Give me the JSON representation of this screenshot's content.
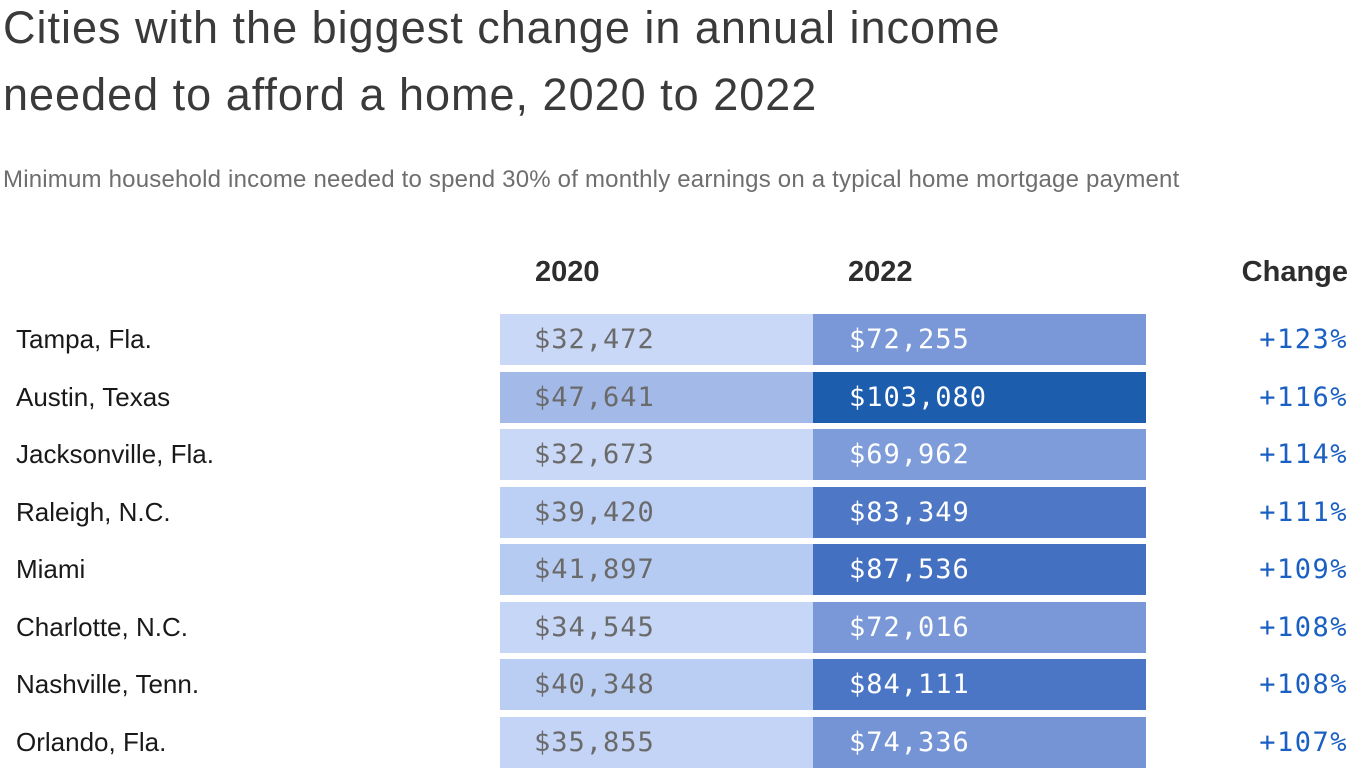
{
  "page": {
    "title_line1": "Cities with the biggest change in annual income",
    "title_line2": "needed to afford a home, 2020 to 2022",
    "subtitle": "Minimum household income needed to spend 30% of monthly earnings on a typical home mortgage payment"
  },
  "table": {
    "headers": {
      "y2020": "2020",
      "y2022": "2022",
      "change": "Change"
    },
    "rows": [
      {
        "city": "Tampa, Fla.",
        "v2020": "$32,472",
        "v2022": "$72,255",
        "change": "+123%",
        "bg2020": "#c9d8f7",
        "bg2022": "#7a98d8"
      },
      {
        "city": "Austin, Texas",
        "v2020": "$47,641",
        "v2022": "$103,080",
        "change": "+116%",
        "bg2020": "#a3bae9",
        "bg2022": "#1c5dad"
      },
      {
        "city": "Jacksonville, Fla.",
        "v2020": "$32,673",
        "v2022": "$69,962",
        "change": "+114%",
        "bg2020": "#c9d8f7",
        "bg2022": "#7e9cda"
      },
      {
        "city": "Raleigh, N.C.",
        "v2020": "$39,420",
        "v2022": "$83,349",
        "change": "+111%",
        "bg2020": "#bccff4",
        "bg2022": "#4e78c6"
      },
      {
        "city": "Miami",
        "v2020": "$41,897",
        "v2022": "$87,536",
        "change": "+109%",
        "bg2020": "#b6cbf2",
        "bg2022": "#4470c2"
      },
      {
        "city": "Charlotte, N.C.",
        "v2020": "$34,545",
        "v2022": "$72,016",
        "change": "+108%",
        "bg2020": "#c6d6f6",
        "bg2022": "#7a98d8"
      },
      {
        "city": "Nashville, Tenn.",
        "v2020": "$40,348",
        "v2022": "$84,111",
        "change": "+108%",
        "bg2020": "#bacdf3",
        "bg2022": "#4b76c5"
      },
      {
        "city": "Orlando, Fla.",
        "v2020": "$35,855",
        "v2022": "$74,336",
        "change": "+107%",
        "bg2020": "#c3d4f6",
        "bg2022": "#7594d6"
      }
    ]
  },
  "colors": {
    "title": "#3a3a3a",
    "subtitle": "#6e6e6e",
    "column_header": "#2d2d2d",
    "city_label": "#191919",
    "value_text_light_cell": "#6a6a6a",
    "value_text_dark_cell": "#ffffff",
    "change_text": "#1a5fc2",
    "background": "#ffffff"
  },
  "chart_data": {
    "type": "heatmap",
    "title": "Cities with the biggest change in annual income needed to afford a home, 2020 to 2022",
    "subtitle": "Minimum household income needed to spend 30% of monthly earnings on a typical home mortgage payment",
    "columns": [
      "2020",
      "2022",
      "Change"
    ],
    "categories": [
      "Tampa, Fla.",
      "Austin, Texas",
      "Jacksonville, Fla.",
      "Raleigh, N.C.",
      "Miami",
      "Charlotte, N.C.",
      "Nashville, Tenn.",
      "Orlando, Fla."
    ],
    "series": [
      {
        "name": "2020",
        "values": [
          32472,
          47641,
          32673,
          39420,
          41897,
          34545,
          40348,
          35855
        ]
      },
      {
        "name": "2022",
        "values": [
          72255,
          103080,
          69962,
          83349,
          87536,
          72016,
          84111,
          74336
        ]
      },
      {
        "name": "Change %",
        "values": [
          123,
          116,
          114,
          111,
          109,
          108,
          108,
          107
        ]
      }
    ],
    "value_format": "USD currency with thousands separator; change shown as +N%",
    "color_encoding": "cell background encodes income value on a light-to-dark blue scale (≈$32k pale blue to ≈$103k dark royal blue)",
    "legend_position": "none",
    "grid": false
  }
}
